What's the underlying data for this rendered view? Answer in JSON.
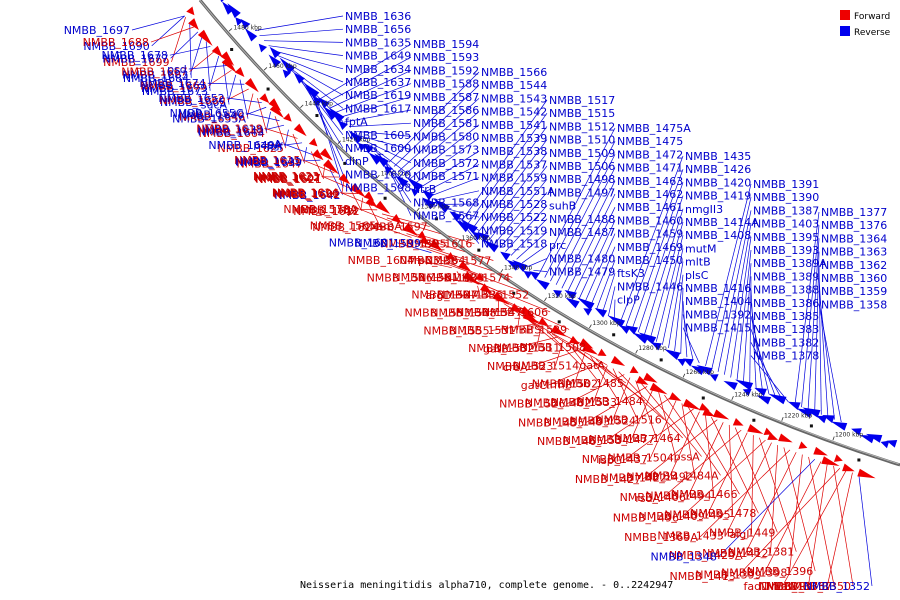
{
  "caption": "Neisseria meningitidis alpha710, complete genome. - 0..2242947",
  "legend": {
    "forward_label": "Forward",
    "reverse_label": "Reverse"
  },
  "colors": {
    "forward": "#ee0000",
    "reverse": "#0000ee",
    "backbone": "#666666",
    "other": "#111111"
  },
  "ruler_ticks": [
    "1480 kbp",
    "1460 kbp",
    "1440 kbp",
    "1420 kbp",
    "1400 kbp",
    "1380 kbp",
    "1360 kbp",
    "1340 kbp",
    "1320 kbp",
    "1300 kbp",
    "1280 kbp",
    "1260 kbp",
    "1240 kbp",
    "1220 kbp",
    "1200 kbp"
  ],
  "features": [
    {
      "t": "NMBB_1697",
      "s": "r"
    },
    {
      "t": "NMBB_1690",
      "s": "r"
    },
    {
      "t": "NMBB_1699",
      "s": "f"
    },
    {
      "t": "NMBB_1684",
      "s": "r"
    },
    {
      "t": "NMBB_1688",
      "s": "f"
    },
    {
      "t": "NMBB_1677",
      "s": "r"
    },
    {
      "t": "NMBB_1683",
      "s": "r"
    },
    {
      "t": "NMBB_1673",
      "s": "r"
    },
    {
      "t": "NMBB_1678",
      "s": "r"
    },
    {
      "t": "NMBB_1667",
      "s": "f"
    },
    {
      "t": "NMBB_1679",
      "s": "r"
    },
    {
      "t": "sucA",
      "s": "r"
    },
    {
      "t": "psd",
      "s": "r"
    },
    {
      "t": "NMBB_1663",
      "s": "f"
    },
    {
      "t": "NMBB_1665",
      "s": "r"
    },
    {
      "t": "NMBB_1655A",
      "s": "r"
    },
    {
      "t": "NMBB_1674",
      "s": "r"
    },
    {
      "t": "NMBB_1660",
      "s": "f"
    },
    {
      "t": "NMBB_1646",
      "s": "f"
    },
    {
      "t": "NMBB_1664",
      "s": "f"
    },
    {
      "t": "NMBB_1652",
      "s": "r"
    },
    {
      "t": "NMBB_1640",
      "s": "r"
    },
    {
      "t": "NMBB_1643",
      "s": "r"
    },
    {
      "t": "NMBB_1625",
      "s": "f"
    },
    {
      "t": "NMBB_1655C",
      "s": "r"
    },
    {
      "t": "NMBB_1638",
      "s": "r"
    },
    {
      "t": "hsf",
      "s": "r"
    },
    {
      "t": "NMBB_1647",
      "s": "f"
    },
    {
      "t": "NMBB_1618",
      "s": "f"
    },
    {
      "t": "NMBB_1649A",
      "s": "r"
    },
    {
      "t": "NMBB_1639",
      "s": "r"
    },
    {
      "t": "NMBB_1621",
      "s": "f"
    },
    {
      "t": "papA",
      "s": "r"
    },
    {
      "t": "NMBB_1641",
      "s": "r"
    },
    {
      "t": "NMBB_1607",
      "s": "f"
    },
    {
      "t": "NMBB_1642",
      "s": "r"
    },
    {
      "t": "NMBB_1615",
      "s": "f"
    },
    {
      "t": "NMBB_1622",
      "s": "f"
    },
    {
      "t": "NMBB_1602",
      "s": "f"
    },
    {
      "t": "NMBB_1612",
      "s": "f"
    },
    {
      "t": "NMBB_1623",
      "s": "f"
    },
    {
      "t": "NMBB_1596",
      "s": "f"
    },
    {
      "t": "fpr",
      "s": "f"
    },
    {
      "t": "NMBB_1624",
      "s": "f"
    },
    {
      "t": "NMBB_1614",
      "s": "f"
    },
    {
      "t": "NMBB_1582",
      "s": "f"
    },
    {
      "t": "NMBB_1597",
      "s": "f"
    },
    {
      "t": "NMBB_1616",
      "s": "f"
    },
    {
      "t": "NMBB_1578A",
      "s": "f"
    },
    {
      "t": "aroA",
      "s": "f"
    },
    {
      "t": "NMBB_1595",
      "s": "f"
    },
    {
      "t": "NMBB_1577",
      "s": "f"
    },
    {
      "t": "NMBB_1565",
      "s": "f"
    },
    {
      "t": "NMBB_1599",
      "s": "r"
    },
    {
      "t": "NMBB_1564",
      "s": "f"
    },
    {
      "t": "NMBB_1574",
      "s": "f"
    },
    {
      "t": "NMBB_1601",
      "s": "r"
    },
    {
      "t": "frpC3",
      "s": "f"
    },
    {
      "t": "NMBB_1603",
      "s": "f"
    },
    {
      "t": "NMBB_1552",
      "s": "f"
    },
    {
      "t": "NMBB_1604",
      "s": "f"
    },
    {
      "t": "NMBB_1561",
      "s": "f"
    },
    {
      "t": "NMBB_1535",
      "s": "f"
    },
    {
      "t": "NMBB_1606",
      "s": "f"
    },
    {
      "t": "NMBB_1546",
      "s": "f"
    },
    {
      "t": "NMBB_1527",
      "s": "f"
    },
    {
      "t": "NMBB_1547",
      "s": "f"
    },
    {
      "t": "NMBB_1529",
      "s": "f"
    },
    {
      "t": "argD",
      "s": "f"
    },
    {
      "t": "NMBB_1548",
      "s": "f"
    },
    {
      "t": "nifS",
      "s": "f"
    },
    {
      "t": "NMBB_1508",
      "s": "f"
    },
    {
      "t": "NMBB_1553",
      "s": "f"
    },
    {
      "t": "NMBB_1531",
      "s": "f"
    },
    {
      "t": "NMBB_1511",
      "s": "f"
    },
    {
      "t": "gatA",
      "s": "f"
    },
    {
      "t": "NMBB_1555",
      "s": "f"
    },
    {
      "t": "NMBB_1532",
      "s": "f"
    },
    {
      "t": "NMBB_1514",
      "s": "f"
    },
    {
      "t": "NMBB_1485",
      "s": "f"
    },
    {
      "t": "gatB",
      "s": "f"
    },
    {
      "t": "NMBB_1523",
      "s": "f"
    },
    {
      "t": "NMBB_1502",
      "s": "f"
    },
    {
      "t": "NMBB_1484",
      "s": "f"
    },
    {
      "t": "creA",
      "s": "f"
    },
    {
      "t": "trmB",
      "s": "f"
    },
    {
      "t": "NMBB_1533",
      "s": "f"
    },
    {
      "t": "NMBB_1516",
      "s": "f"
    },
    {
      "t": "gatC",
      "s": "f"
    },
    {
      "t": "NMBB_1482",
      "s": "f"
    },
    {
      "t": "NMBB_1524",
      "s": "f"
    },
    {
      "t": "NMBB_1464",
      "s": "f"
    },
    {
      "t": "NMBB_1526",
      "s": "f"
    },
    {
      "t": "NMBB_1493",
      "s": "f"
    },
    {
      "t": "NMBB_1477",
      "s": "f"
    },
    {
      "t": "pssA",
      "s": "f"
    },
    {
      "t": "NMBB_1455",
      "s": "f"
    },
    {
      "t": "NMBB_1534",
      "s": "f"
    },
    {
      "t": "NMBB_1504",
      "s": "f"
    },
    {
      "t": "NMBB_1484A",
      "s": "f"
    },
    {
      "t": "NMBB_1465",
      "s": "f"
    },
    {
      "t": "NMBB_1437",
      "s": "f"
    },
    {
      "t": "NMBB_1492",
      "s": "f"
    },
    {
      "t": "NMBB_1466",
      "s": "f"
    },
    {
      "t": "ispG",
      "s": "f"
    },
    {
      "t": "NMBB_1422",
      "s": "f"
    },
    {
      "t": "NMBB_1494",
      "s": "f"
    },
    {
      "t": "NMBB_1478",
      "s": "f"
    },
    {
      "t": "NMBB_1427",
      "s": "f"
    },
    {
      "t": "NMBB_1406",
      "s": "f"
    },
    {
      "t": "NMBB_1495",
      "s": "f"
    },
    {
      "t": "NMBB_1449",
      "s": "f"
    },
    {
      "t": "rsuA",
      "s": "f"
    },
    {
      "t": "NMBB_1409",
      "s": "f"
    },
    {
      "t": "algI",
      "s": "f"
    },
    {
      "t": "NMBB_1381",
      "s": "f"
    },
    {
      "t": "NMBB_1496",
      "s": "f"
    },
    {
      "t": "NMBB_1433",
      "s": "f"
    },
    {
      "t": "NMBB_1412",
      "s": "f"
    },
    {
      "t": "NMBB_1396",
      "s": "f"
    },
    {
      "t": "NMBB_1369A",
      "s": "f"
    },
    {
      "t": "NMBB_1429A",
      "s": "f"
    },
    {
      "t": "NMBB_1398",
      "s": "f"
    },
    {
      "t": "NMBB_1367",
      "s": "f"
    },
    {
      "t": "NMBB_1348",
      "s": "r"
    },
    {
      "t": "NMBB_1399",
      "s": "f"
    },
    {
      "t": "nlaIVR",
      "s": "f"
    },
    {
      "t": "NMBB_1350",
      "s": "f"
    },
    {
      "t": "NMBB_1413",
      "s": "f"
    },
    {
      "t": "fadD-1",
      "s": "f"
    },
    {
      "t": "NMBB_1373",
      "s": "f"
    },
    {
      "t": "NMBB_1352",
      "s": "r"
    },
    {
      "t": "NMBB_1636",
      "s": "r"
    },
    {
      "t": "NMBB_1656",
      "s": "r"
    },
    {
      "t": "NMBB_1635",
      "s": "r"
    },
    {
      "t": "NMBB_1649",
      "s": "r"
    },
    {
      "t": "NMBB_1634",
      "s": "r"
    },
    {
      "t": "NMBB_1637",
      "s": "r"
    },
    {
      "t": "NMBB_1619",
      "s": "r"
    },
    {
      "t": "NMBB_1617",
      "s": "r"
    },
    {
      "t": "fptA",
      "s": "r"
    },
    {
      "t": "NMBB_1605",
      "s": "r"
    },
    {
      "t": "NMBB_1600",
      "s": "r"
    },
    {
      "t": "dinP",
      "s": "r"
    },
    {
      "t": "NMBB_1620",
      "s": "r"
    },
    {
      "t": "NMBB_1598",
      "s": "r"
    },
    {
      "t": "NMBB_1594",
      "s": "r"
    },
    {
      "t": "NMBB_1593",
      "s": "r"
    },
    {
      "t": "NMBB_1592",
      "s": "r"
    },
    {
      "t": "NMBB_1588",
      "s": "r"
    },
    {
      "t": "NMBB_1587",
      "s": "r"
    },
    {
      "t": "NMBB_1586",
      "s": "r"
    },
    {
      "t": "NMBB_1581",
      "s": "r"
    },
    {
      "t": "NMBB_1580",
      "s": "r"
    },
    {
      "t": "NMBB_1573",
      "s": "r"
    },
    {
      "t": "NMBB_1572",
      "s": "r"
    },
    {
      "t": "NMBB_1571",
      "s": "r"
    },
    {
      "t": "htrB",
      "s": "r"
    },
    {
      "t": "NMBB_1568",
      "s": "r"
    },
    {
      "t": "NMBB_1567",
      "s": "r"
    },
    {
      "t": "NMBB_1566",
      "s": "r"
    },
    {
      "t": "NMBB_1544",
      "s": "r"
    },
    {
      "t": "NMBB_1543",
      "s": "r"
    },
    {
      "t": "NMBB_1542",
      "s": "r"
    },
    {
      "t": "NMBB_1541",
      "s": "r"
    },
    {
      "t": "NMBB_1539",
      "s": "r"
    },
    {
      "t": "NMBB_1538",
      "s": "r"
    },
    {
      "t": "NMBB_1537",
      "s": "r"
    },
    {
      "t": "NMBB_1559",
      "s": "r"
    },
    {
      "t": "NMBB_1551A",
      "s": "r"
    },
    {
      "t": "NMBB_1528",
      "s": "r"
    },
    {
      "t": "NMBB_1522",
      "s": "r"
    },
    {
      "t": "NMBB_1519",
      "s": "r"
    },
    {
      "t": "NMBB_1518",
      "s": "r"
    },
    {
      "t": "NMBB_1517",
      "s": "r"
    },
    {
      "t": "NMBB_1515",
      "s": "r"
    },
    {
      "t": "NMBB_1512",
      "s": "r"
    },
    {
      "t": "NMBB_1510",
      "s": "r"
    },
    {
      "t": "NMBB_1509",
      "s": "r"
    },
    {
      "t": "NMBB_1506",
      "s": "r"
    },
    {
      "t": "NMBB_1498",
      "s": "r"
    },
    {
      "t": "NMBB_1497",
      "s": "r"
    },
    {
      "t": "suhB",
      "s": "r"
    },
    {
      "t": "NMBB_1488",
      "s": "r"
    },
    {
      "t": "NMBB_1487",
      "s": "r"
    },
    {
      "t": "prc",
      "s": "r"
    },
    {
      "t": "NMBB_1480",
      "s": "r"
    },
    {
      "t": "NMBB_1479",
      "s": "r"
    },
    {
      "t": "NMBB_1475A",
      "s": "r"
    },
    {
      "t": "NMBB_1475",
      "s": "r"
    },
    {
      "t": "NMBB_1472",
      "s": "r"
    },
    {
      "t": "NMBB_1471",
      "s": "r"
    },
    {
      "t": "NMBB_1463",
      "s": "r"
    },
    {
      "t": "NMBB_1462",
      "s": "r"
    },
    {
      "t": "NMBB_1461",
      "s": "r"
    },
    {
      "t": "NMBB_1460",
      "s": "r"
    },
    {
      "t": "NMBB_1459",
      "s": "r"
    },
    {
      "t": "NMBB_1469",
      "s": "r"
    },
    {
      "t": "NMBB_1450",
      "s": "r"
    },
    {
      "t": "ftsK3",
      "s": "r"
    },
    {
      "t": "NMBB_1446",
      "s": "r"
    },
    {
      "t": "clpP",
      "s": "r"
    },
    {
      "t": "NMBB_1435",
      "s": "r"
    },
    {
      "t": "NMBB_1426",
      "s": "r"
    },
    {
      "t": "NMBB_1420",
      "s": "r"
    },
    {
      "t": "NMBB_1419",
      "s": "r"
    },
    {
      "t": "nmgII3",
      "s": "r"
    },
    {
      "t": "NMBB_1414A",
      "s": "r"
    },
    {
      "t": "NMBB_1408",
      "s": "r"
    },
    {
      "t": "mutM",
      "s": "r"
    },
    {
      "t": "mltB",
      "s": "r"
    },
    {
      "t": "plsC",
      "s": "r"
    },
    {
      "t": "NMBB_1416",
      "s": "r"
    },
    {
      "t": "NMBB_1404",
      "s": "r"
    },
    {
      "t": "NMBB_1392",
      "s": "r"
    },
    {
      "t": "NMBB_1415",
      "s": "r"
    },
    {
      "t": "NMBB_1391",
      "s": "r"
    },
    {
      "t": "NMBB_1390",
      "s": "r"
    },
    {
      "t": "NMBB_1387",
      "s": "r"
    },
    {
      "t": "NMBB_1403",
      "s": "r"
    },
    {
      "t": "NMBB_1395",
      "s": "r"
    },
    {
      "t": "NMBB_1393",
      "s": "r"
    },
    {
      "t": "NMBB_1389A",
      "s": "r"
    },
    {
      "t": "NMBB_1389",
      "s": "r"
    },
    {
      "t": "NMBB_1388",
      "s": "r"
    },
    {
      "t": "NMBB_1386",
      "s": "r"
    },
    {
      "t": "NMBB_1385",
      "s": "r"
    },
    {
      "t": "NMBB_1383",
      "s": "r"
    },
    {
      "t": "NMBB_1382",
      "s": "r"
    },
    {
      "t": "NMBB_1378",
      "s": "r"
    },
    {
      "t": "NMBB_1377",
      "s": "r"
    },
    {
      "t": "NMBB_1376",
      "s": "r"
    },
    {
      "t": "NMBB_1364",
      "s": "r"
    },
    {
      "t": "NMBB_1363",
      "s": "r"
    },
    {
      "t": "NMBB_1362",
      "s": "r"
    },
    {
      "t": "NMBB_1360",
      "s": "r"
    },
    {
      "t": "NMBB_1359",
      "s": "r"
    },
    {
      "t": "NMBB_1358",
      "s": "r"
    }
  ]
}
